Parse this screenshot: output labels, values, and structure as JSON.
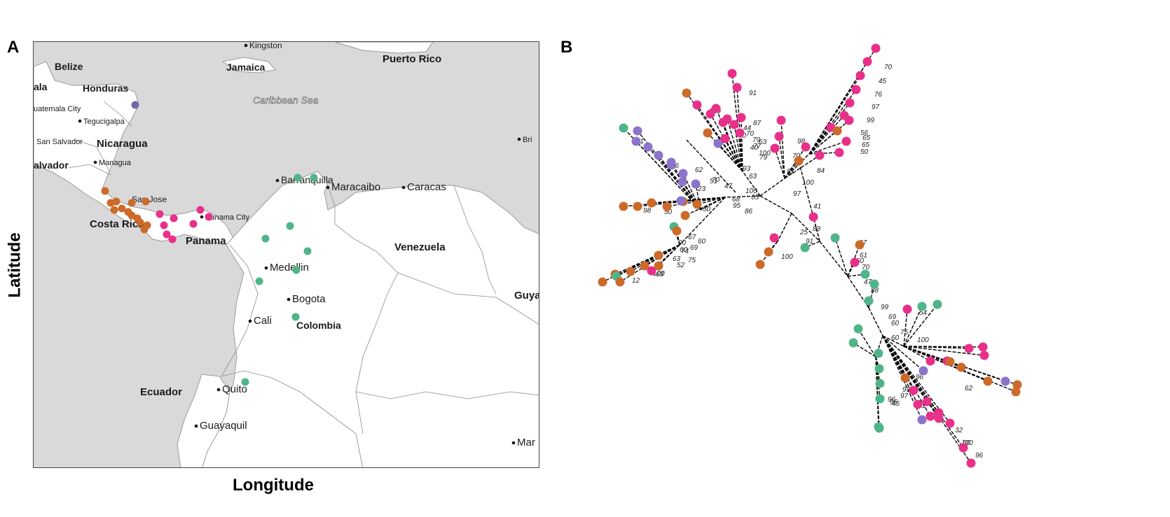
{
  "figure": {
    "panel_a_letter": "A",
    "panel_b_letter": "B",
    "y_axis_label": "Latitude",
    "x_axis_label": "Longitude"
  },
  "colors": {
    "orange": "#cc6a2a",
    "pink": "#e8308a",
    "green": "#4fb589",
    "purple": "#8c73cc",
    "blue": "#6a6aaa",
    "sea": "#d9d9d9",
    "land": "#ffffff",
    "border": "#9a9a9a"
  },
  "map": {
    "sea_label": "Caribbean Sea",
    "country_labels": [
      "Belize",
      "Honduras",
      "Jamaica",
      "Puerto Rico",
      "ala",
      "Nicaragua",
      "alvador",
      "Costa Rica",
      "Panama",
      "Venezuela",
      "Colombia",
      "Ecuador",
      "Guya"
    ],
    "city_labels": [
      "Kingston",
      "uatemala City",
      "Tegucigalpa",
      "San Salvador",
      "Managua",
      "San Jose",
      "Panama City",
      "Barranquilla",
      "Maracaibo",
      "Caracas",
      "Medellin",
      "Bogota",
      "Cali",
      "Quito",
      "Guayaquil",
      "Bri",
      "Mar"
    ]
  },
  "tree": {
    "bootstrap_labels": [
      "70",
      "45",
      "76",
      "97",
      "99",
      "56",
      "65",
      "65",
      "50",
      "91",
      "100",
      "79",
      "40",
      "87",
      "70",
      "44",
      "40",
      "63",
      "79",
      "77",
      "100",
      "84",
      "98",
      "70",
      "61",
      "100",
      "97",
      "91",
      "76",
      "23",
      "93",
      "63",
      "62",
      "51",
      "100",
      "47",
      "70",
      "65",
      "95",
      "68",
      "86",
      "50",
      "98",
      "50",
      "90",
      "74",
      "67",
      "69",
      "60",
      "75",
      "60",
      "63",
      "52",
      "100",
      "12",
      "63",
      "91",
      "25",
      "89",
      "100",
      "41",
      "67",
      "61",
      "60",
      "70",
      "47",
      "88",
      "99",
      "69",
      "54",
      "75",
      "60",
      "60",
      "100",
      "93",
      "97",
      "96",
      "95",
      "45",
      "96",
      "92",
      "41",
      "32",
      "100",
      "50",
      "96",
      "62"
    ]
  }
}
